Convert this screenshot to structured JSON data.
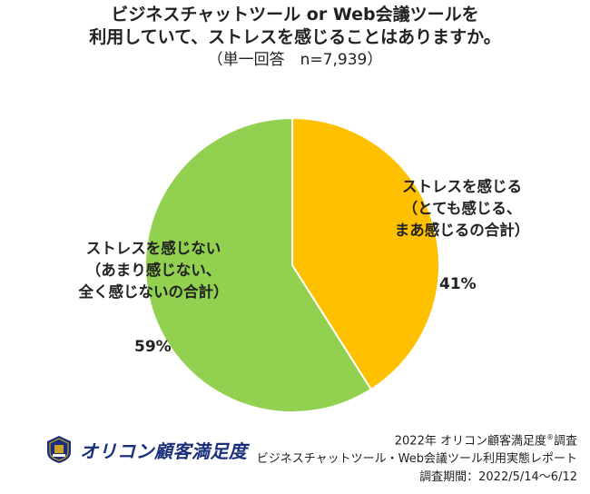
{
  "chart_data": {
    "type": "pie",
    "title_line1": "ビジネスチャットツール or Web会議ツールを",
    "title_line2": "利用していて、ストレスを感じることはありますか。",
    "subtitle": "（単一回答　n=7,939）",
    "slices": [
      {
        "label_lines": [
          "ストレスを感じる",
          "（とても感じる、",
          "まあ感じるの合計）"
        ],
        "value": 41,
        "value_label": "41%",
        "color": "#FFC000"
      },
      {
        "label_lines": [
          "ストレスを感じない",
          "（あまり感じない、",
          "全く感じないの合計）"
        ],
        "value": 59,
        "value_label": "59%",
        "color": "#92D050"
      }
    ],
    "start_angle": "12 o'clock",
    "direction": "clockwise"
  },
  "footer": {
    "logo_text": "オリコン顧客満足度",
    "source_line1": "2022年 オリコン顧客満足度",
    "source_registered": "®",
    "source_line1_tail": "調査",
    "source_line2": "ビジネスチャットツール・Web会議ツール利用実態レポート",
    "source_line3": "調査期間：2022/5/14～6/12",
    "logo_color": "#1A2F7A"
  }
}
